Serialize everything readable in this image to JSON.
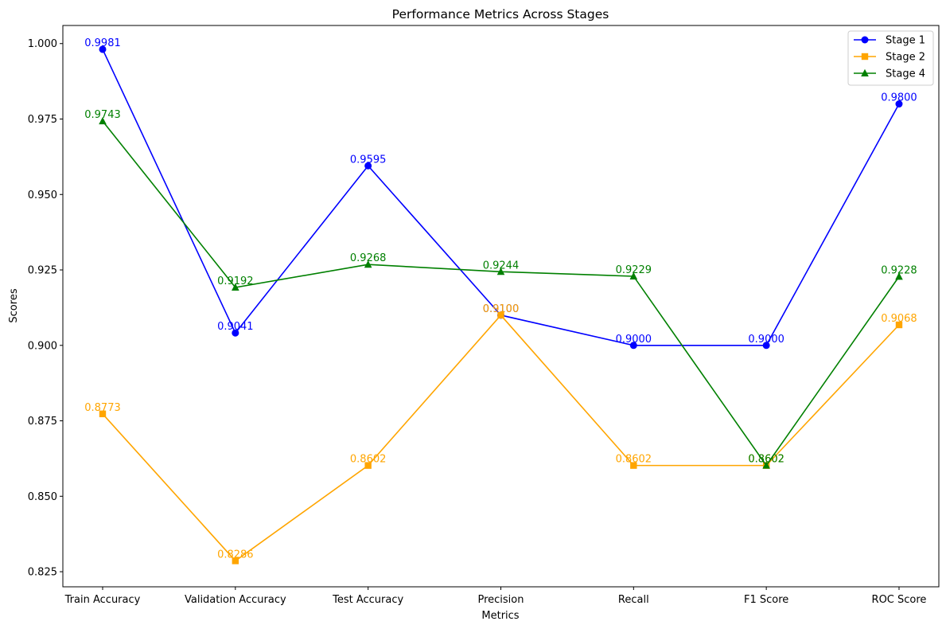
{
  "chart_data": {
    "type": "line",
    "title": "Performance Metrics Across Stages",
    "xlabel": "Metrics",
    "ylabel": "Scores",
    "categories": [
      "Train Accuracy",
      "Validation Accuracy",
      "Test Accuracy",
      "Precision",
      "Recall",
      "F1 Score",
      "ROC Score"
    ],
    "ylim": [
      0.82,
      1.006
    ],
    "yticks": [
      "0.825",
      "0.850",
      "0.875",
      "0.900",
      "0.925",
      "0.950",
      "0.975",
      "1.000"
    ],
    "grid": false,
    "legend": {
      "position": "top-right"
    },
    "series": [
      {
        "name": "Stage 1",
        "color": "#0000ff",
        "marker": "circle",
        "values": [
          0.9981,
          0.9041,
          0.9595,
          0.91,
          0.9,
          0.9,
          0.98
        ],
        "labels": [
          "0.9981",
          "0.9041",
          "0.9595",
          "0.9100",
          "0.9000",
          "0.9000",
          "0.9800"
        ]
      },
      {
        "name": "Stage 2",
        "color": "#ffa500",
        "marker": "square",
        "values": [
          0.8773,
          0.8286,
          0.8602,
          0.91,
          0.8602,
          0.8602,
          0.9068
        ],
        "labels": [
          "0.8773",
          "0.8286",
          "0.8602",
          "0.9100",
          "0.8602",
          "0.8602",
          "0.9068"
        ]
      },
      {
        "name": "Stage 4",
        "color": "#008000",
        "marker": "triangle",
        "values": [
          0.9743,
          0.9192,
          0.9268,
          0.9244,
          0.9229,
          0.8602,
          0.9228
        ],
        "labels": [
          "0.9743",
          "0.9192",
          "0.9268",
          "0.9244",
          "0.9229",
          "0.8602",
          "0.9228"
        ]
      }
    ]
  }
}
